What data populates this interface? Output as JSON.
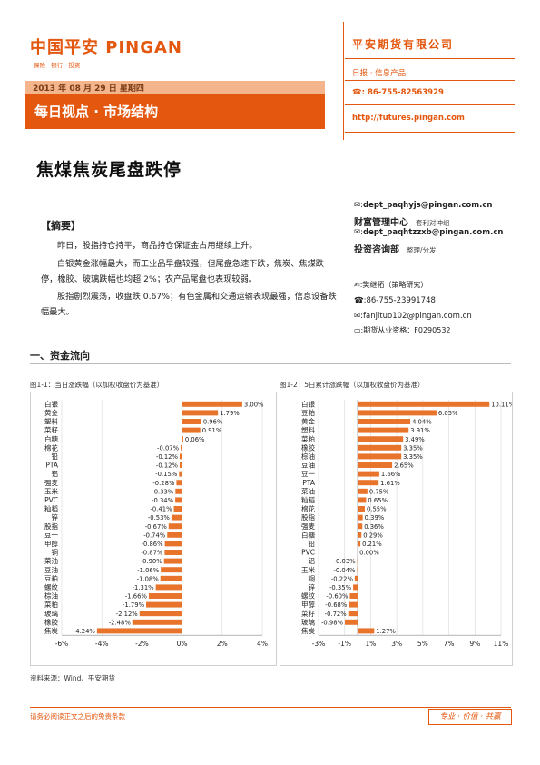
{
  "header": {
    "logo_text": "中国平安 PINGAN",
    "logo_sub": "保险 · 银行 · 投资",
    "date": "2013 年 08 月 29 日 星期四",
    "column_title": "每日视点 · 市场结构",
    "company": "平安期货有限公司",
    "report_type": "日报 · 信息产品",
    "phone": "86-755-82563929",
    "url": "http://futures.pingan.com"
  },
  "title": "焦煤焦炭尾盘跌停",
  "summary": {
    "heading": "【摘要】",
    "p1": "昨日，股指持仓持平，商品持仓保证金占用继续上升。",
    "p2": "白银黄金涨幅最大，而工业品早盘较强，但尾盘急速下跌，焦炭、焦煤跌停，橡胶、玻璃跌幅也均超 2%；农产品尾盘也表现较弱。",
    "p3": "股指剧烈震荡，收盘跌 0.67%；有色金属和交通运输表现最强，信息设备跌幅最大。"
  },
  "contacts": {
    "email1": "dept_paqhyjs@pingan.com.cn",
    "dept1": "财富管理中心",
    "dept1_note": "套利对冲组",
    "email2": "dept_paqhtzzxb@pingan.com.cn",
    "dept2": "投资咨询部",
    "dept2_note": "整理/分发",
    "analyst": "樊继拓（策略研究）",
    "phone": "86-755-23991748",
    "email3": "fanjituo102@pingan.com.cn",
    "license": "期货从业资格：F0290532"
  },
  "section": {
    "heading": "一、资金流向",
    "fig1_caption": "图1-1：当日涨跌幅（以加权收盘价为基准）",
    "fig2_caption": "图1-2：5日累计涨跌幅（以加权收盘价为基准）",
    "source": "资料来源：Wind、平安期货"
  },
  "footer": {
    "disclaimer": "请务必阅读正文之后的免责条款",
    "motto": "专业 · 价值 · 共赢"
  },
  "colors": {
    "accent": "#e4570f",
    "bar": "#e8732a"
  },
  "icons": {
    "email": "envelope-icon",
    "phone": "phone-icon",
    "pen": "pen-icon",
    "license": "card-icon"
  },
  "chart_data": [
    {
      "type": "bar",
      "orientation": "horizontal",
      "categories": [
        "白银",
        "黄金",
        "塑料",
        "菜籽",
        "白糖",
        "棉花",
        "铅",
        "PTA",
        "铝",
        "强麦",
        "玉米",
        "PVC",
        "籼稻",
        "锌",
        "股指",
        "豆一",
        "甲醇",
        "铜",
        "菜油",
        "豆油",
        "豆粕",
        "螺纹",
        "棕油",
        "菜粕",
        "玻璃",
        "橡胶",
        "焦炭"
      ],
      "values": [
        3.0,
        1.79,
        0.96,
        0.91,
        0.06,
        -0.07,
        -0.12,
        -0.12,
        -0.15,
        -0.28,
        -0.33,
        -0.34,
        -0.41,
        -0.53,
        -0.67,
        -0.74,
        -0.86,
        -0.87,
        -0.9,
        -1.06,
        -1.08,
        -1.31,
        -1.66,
        -1.79,
        -2.12,
        -2.48,
        -4.24
      ],
      "labels": [
        "3.00%",
        "1.79%",
        "0.96%",
        "0.91%",
        "0.06%",
        "-0.07%",
        "-0.12%",
        "-0.12%",
        "-0.15%",
        "-0.28%",
        "-0.33%",
        "-0.34%",
        "-0.41%",
        "-0.53%",
        "-0.67%",
        "-0.74%",
        "-0.86%",
        "-0.87%",
        "-0.90%",
        "-1.06%",
        "-1.08%",
        "-1.31%",
        "-1.66%",
        "-1.79%",
        "-2.12%",
        "-2.48%",
        "-4.24%"
      ],
      "xlim": [
        -6,
        4
      ],
      "ticks": [
        -6,
        -4,
        -2,
        0,
        2,
        4
      ],
      "tick_labels": [
        "-6%",
        "-4%",
        "-2%",
        "0%",
        "2%",
        "4%"
      ],
      "grid": true
    },
    {
      "type": "bar",
      "orientation": "horizontal",
      "categories": [
        "白银",
        "豆粕",
        "黄金",
        "塑料",
        "菜粕",
        "橡胶",
        "棕油",
        "豆油",
        "豆一",
        "PTA",
        "菜油",
        "籼稻",
        "棉花",
        "股指",
        "强麦",
        "白糖",
        "铅",
        "PVC",
        "铝",
        "玉米",
        "铜",
        "锌",
        "螺纹",
        "甲醇",
        "菜籽",
        "玻璃",
        "焦炭"
      ],
      "values": [
        10.11,
        6.05,
        4.04,
        3.91,
        3.49,
        3.35,
        3.35,
        2.65,
        1.66,
        1.61,
        0.75,
        0.65,
        0.55,
        0.39,
        0.36,
        0.29,
        0.21,
        0.0,
        -0.03,
        -0.04,
        -0.22,
        -0.35,
        -0.6,
        -0.68,
        -0.72,
        -0.98,
        1.27
      ],
      "labels": [
        "10.11%",
        "6.05%",
        "4.04%",
        "3.91%",
        "3.49%",
        "3.35%",
        "3.35%",
        "2.65%",
        "1.66%",
        "1.61%",
        "0.75%",
        "0.65%",
        "0.55%",
        "0.39%",
        "0.36%",
        "0.29%",
        "0.21%",
        "0.00%",
        "-0.03%",
        "-0.04%",
        "-0.22%",
        "-0.35%",
        "-0.60%",
        "-0.68%",
        "-0.72%",
        "-0.98%",
        "1.27%"
      ],
      "xlim": [
        -3,
        11
      ],
      "ticks": [
        -3,
        -1,
        1,
        3,
        5,
        7,
        9,
        11
      ],
      "tick_labels": [
        "-3%",
        "-1%",
        "1%",
        "3%",
        "5%",
        "7%",
        "9%",
        "11%"
      ],
      "grid": true
    }
  ]
}
